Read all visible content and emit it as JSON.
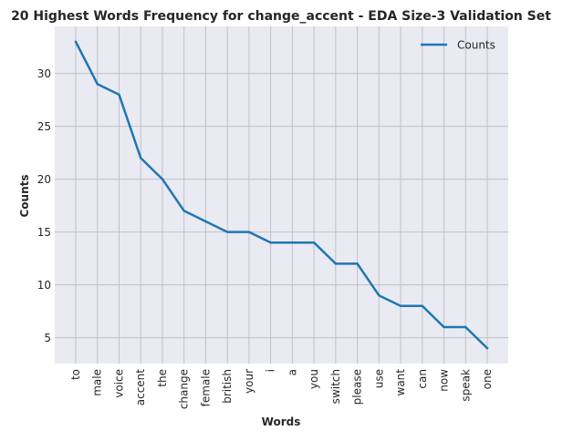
{
  "chart_data": {
    "type": "line",
    "title": "20 Highest Words Frequency for change_accent - EDA Size-3 Validation Set",
    "xlabel": "Words",
    "ylabel": "Counts",
    "categories": [
      "to",
      "male",
      "voice",
      "accent",
      "the",
      "change",
      "female",
      "british",
      "your",
      "i",
      "a",
      "you",
      "switch",
      "please",
      "use",
      "want",
      "can",
      "now",
      "speak",
      "one"
    ],
    "series": [
      {
        "name": "Counts",
        "values": [
          33,
          29,
          28,
          22,
          20,
          17,
          16,
          15,
          15,
          14,
          14,
          14,
          12,
          12,
          9,
          8,
          8,
          6,
          6,
          4
        ]
      }
    ],
    "ylim": [
      2.55,
      34.45
    ],
    "yticks": [
      5,
      10,
      15,
      20,
      25,
      30
    ],
    "grid": true,
    "legend": "top-right",
    "colors": {
      "line": "#1f77b4",
      "plot_bg": "#eaeaf2",
      "grid": "#c0c0c8",
      "text": "#262626"
    }
  }
}
